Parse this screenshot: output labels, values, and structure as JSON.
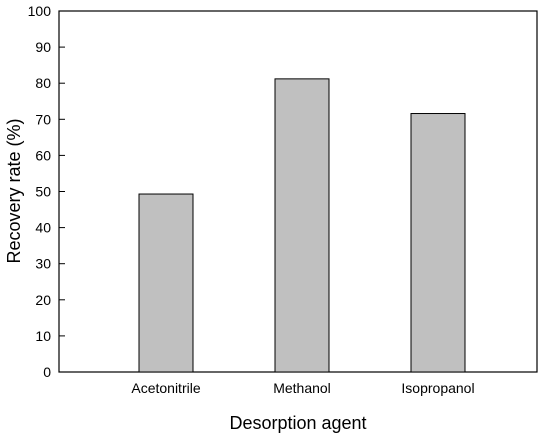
{
  "chart_data": {
    "type": "bar",
    "categories": [
      "Acetonitrile",
      "Methanol",
      "Isopropanol"
    ],
    "values": [
      49.3,
      81.2,
      71.6
    ],
    "title": "",
    "xlabel": "Desorption agent",
    "ylabel": "Recovery rate (%)",
    "ylim": [
      0,
      100
    ],
    "yticks": [
      0,
      10,
      20,
      30,
      40,
      50,
      60,
      70,
      80,
      90,
      100
    ],
    "grid": false,
    "bar_color": "#c0c0c0",
    "edge_color": "#000000"
  }
}
